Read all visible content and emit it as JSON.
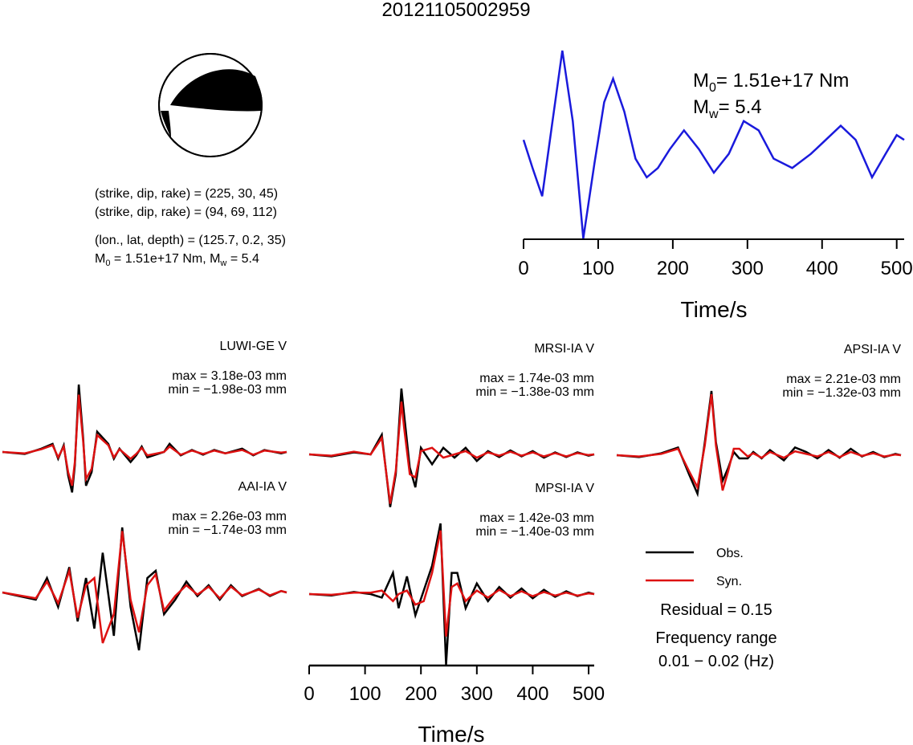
{
  "event_id": "20121105002959",
  "mechanism": {
    "lines": [
      "(strike, dip, rake) = (225, 30, 45)",
      "(strike, dip, rake) = (94, 69, 112)",
      "(lon., lat, depth) = (125.7, 0.2, 35)"
    ],
    "m0_text": "1.51e+17 Nm",
    "mw_text": "5.4",
    "m0_symbol": "M",
    "m0_sub": "0",
    "mw_sub": "w"
  },
  "colors": {
    "observed": "#000000",
    "synthetic": "#dd1111",
    "stf": "#1a1adc"
  },
  "stf_labels": {
    "m0_value": "= 1.51e+17 Nm",
    "mw_value": "= 5.4"
  },
  "legend": {
    "obs": "Obs.",
    "syn": "Syn.",
    "residual": "Residual = 0.15",
    "freq_label": "Frequency range",
    "freq_value": "0.01 − 0.02 (Hz)"
  },
  "chart_data": [
    {
      "type": "line",
      "name": "source time function",
      "xlabel": "Time/s",
      "xlim": [
        0,
        510
      ],
      "x_ticks": [
        0,
        100,
        200,
        300,
        400,
        500
      ],
      "series": [
        {
          "color": "#1a1adc",
          "x": [
            0,
            12,
            25,
            38,
            52,
            66,
            80,
            95,
            108,
            120,
            135,
            150,
            165,
            180,
            196,
            215,
            235,
            255,
            275,
            295,
            315,
            335,
            360,
            385,
            405,
            425,
            445,
            467,
            485,
            500,
            510
          ],
          "y": [
            0.05,
            -0.25,
            -0.55,
            0.2,
            1.0,
            0.25,
            -1.0,
            -0.2,
            0.45,
            0.7,
            0.35,
            -0.15,
            -0.35,
            -0.25,
            -0.05,
            0.15,
            -0.05,
            -0.3,
            -0.1,
            0.25,
            0.15,
            -0.15,
            -0.25,
            -0.1,
            0.05,
            0.2,
            0.05,
            -0.35,
            -0.1,
            0.1,
            0.05
          ]
        }
      ]
    },
    {
      "type": "line",
      "station": "LUWI-GE V",
      "max_text": "max = 3.18e-03 mm",
      "min_text": "min = −1.98e-03 mm",
      "xlim": [
        0,
        510
      ],
      "series": [
        {
          "name": "Obs.",
          "x": [
            0,
            40,
            70,
            90,
            100,
            110,
            118,
            125,
            130,
            137,
            145,
            150,
            160,
            170,
            190,
            200,
            210,
            230,
            240,
            250,
            260,
            290,
            300,
            320,
            340,
            360,
            380,
            400,
            430,
            450,
            470,
            500,
            510
          ],
          "y": [
            0,
            -0.03,
            0.05,
            0.12,
            -0.1,
            0.1,
            -0.35,
            -0.6,
            -0.2,
            1.0,
            0.2,
            -0.5,
            -0.3,
            0.3,
            0.12,
            -0.1,
            0.05,
            -0.15,
            -0.05,
            0.08,
            -0.08,
            0.0,
            0.12,
            -0.05,
            0.03,
            -0.04,
            0.03,
            -0.02,
            0.05,
            -0.05,
            0.03,
            -0.02,
            0.0
          ]
        },
        {
          "name": "Syn.",
          "x": [
            0,
            40,
            70,
            90,
            100,
            110,
            118,
            125,
            130,
            137,
            145,
            150,
            160,
            170,
            190,
            200,
            210,
            230,
            240,
            250,
            260,
            290,
            300,
            320,
            340,
            360,
            380,
            400,
            430,
            450,
            470,
            500,
            510
          ],
          "y": [
            0,
            -0.02,
            0.04,
            0.1,
            -0.08,
            0.08,
            -0.3,
            -0.5,
            -0.15,
            0.85,
            0.15,
            -0.4,
            -0.25,
            0.25,
            0.1,
            -0.08,
            0.04,
            -0.1,
            -0.03,
            0.06,
            -0.05,
            0.0,
            0.08,
            -0.04,
            0.02,
            -0.03,
            0.02,
            -0.02,
            0.03,
            -0.04,
            0.02,
            -0.01,
            0.0
          ]
        }
      ]
    },
    {
      "type": "line",
      "station": "MRSI-IA V",
      "max_text": "max = 1.74e-03 mm",
      "min_text": "min = −1.38e-03 mm",
      "xlim": [
        0,
        510
      ],
      "series": [
        {
          "name": "Obs.",
          "x": [
            0,
            40,
            80,
            110,
            130,
            145,
            155,
            165,
            170,
            180,
            190,
            200,
            220,
            240,
            260,
            280,
            300,
            320,
            340,
            360,
            380,
            400,
            420,
            440,
            460,
            480,
            500,
            510
          ],
          "y": [
            0,
            -0.03,
            0.03,
            0.0,
            0.3,
            -0.8,
            -0.3,
            1.0,
            0.6,
            -0.2,
            -0.5,
            0.1,
            -0.15,
            0.1,
            -0.05,
            0.1,
            -0.1,
            0.05,
            -0.04,
            0.06,
            -0.03,
            0.05,
            -0.05,
            0.03,
            -0.04,
            0.03,
            -0.02,
            0.0
          ]
        },
        {
          "name": "Syn.",
          "x": [
            0,
            40,
            80,
            110,
            130,
            145,
            155,
            165,
            170,
            180,
            190,
            200,
            220,
            240,
            260,
            280,
            300,
            320,
            340,
            360,
            380,
            400,
            420,
            440,
            460,
            480,
            500,
            510
          ],
          "y": [
            0,
            -0.02,
            0.04,
            0.0,
            0.25,
            -0.75,
            -0.25,
            0.8,
            0.4,
            -0.3,
            -0.35,
            0.05,
            0.1,
            -0.05,
            0.0,
            0.05,
            -0.05,
            0.03,
            -0.02,
            0.04,
            -0.02,
            0.03,
            -0.03,
            0.02,
            -0.03,
            0.02,
            -0.01,
            0.0
          ]
        }
      ]
    },
    {
      "type": "line",
      "station": "APSI-IA V",
      "max_text": "max = 2.21e-03 mm",
      "min_text": "min = −1.32e-03 mm",
      "xlim": [
        0,
        510
      ],
      "series": [
        {
          "name": "Obs.",
          "x": [
            0,
            40,
            80,
            110,
            130,
            145,
            158,
            170,
            178,
            190,
            200,
            210,
            220,
            235,
            245,
            260,
            275,
            300,
            320,
            340,
            360,
            380,
            400,
            420,
            440,
            460,
            480,
            500,
            510
          ],
          "y": [
            0,
            -0.03,
            0.03,
            0.12,
            -0.3,
            -0.6,
            0.2,
            1.0,
            0.2,
            -0.4,
            -0.2,
            0.05,
            -0.05,
            -0.05,
            0.05,
            -0.05,
            0.08,
            -0.08,
            0.12,
            0.05,
            -0.05,
            0.08,
            -0.04,
            0.1,
            -0.02,
            0.05,
            -0.03,
            0.02,
            0.0
          ]
        },
        {
          "name": "Syn.",
          "x": [
            0,
            40,
            80,
            110,
            130,
            145,
            158,
            170,
            178,
            190,
            200,
            210,
            220,
            235,
            245,
            260,
            275,
            300,
            320,
            340,
            360,
            380,
            400,
            420,
            440,
            460,
            480,
            500,
            510
          ],
          "y": [
            0,
            -0.02,
            0.02,
            0.1,
            -0.25,
            -0.5,
            0.15,
            0.95,
            0.15,
            -0.55,
            -0.25,
            0.1,
            0.1,
            -0.02,
            0.03,
            -0.04,
            0.05,
            -0.04,
            0.06,
            0.02,
            -0.02,
            0.05,
            -0.03,
            0.05,
            -0.01,
            0.03,
            -0.02,
            0.01,
            0.0
          ]
        }
      ]
    },
    {
      "type": "line",
      "station": "AAI-IA V",
      "max_text": "max = 2.26e-03 mm",
      "min_text": "min = −1.74e-03 mm",
      "xlim": [
        0,
        510
      ],
      "series": [
        {
          "name": "Obs.",
          "x": [
            0,
            30,
            60,
            80,
            100,
            120,
            135,
            150,
            165,
            180,
            200,
            215,
            230,
            245,
            260,
            275,
            290,
            310,
            330,
            350,
            370,
            390,
            410,
            430,
            460,
            480,
            500,
            510
          ],
          "y": [
            0,
            -0.05,
            -0.1,
            0.2,
            -0.2,
            0.35,
            -0.4,
            0.2,
            -0.5,
            0.55,
            -0.6,
            0.9,
            -0.2,
            -0.8,
            0.2,
            0.3,
            -0.3,
            -0.1,
            0.15,
            -0.05,
            0.1,
            -0.1,
            0.1,
            -0.05,
            0.05,
            -0.05,
            0.02,
            0.0
          ]
        },
        {
          "name": "Syn.",
          "x": [
            0,
            30,
            60,
            80,
            100,
            120,
            135,
            150,
            165,
            180,
            200,
            215,
            230,
            245,
            260,
            275,
            290,
            310,
            330,
            350,
            370,
            390,
            410,
            430,
            460,
            480,
            500,
            510
          ],
          "y": [
            0,
            -0.04,
            -0.08,
            0.15,
            -0.15,
            0.3,
            -0.35,
            0.1,
            0.2,
            -0.7,
            -0.3,
            0.85,
            -0.1,
            -0.55,
            0.1,
            0.25,
            -0.25,
            -0.05,
            0.1,
            -0.03,
            0.08,
            -0.08,
            0.08,
            -0.04,
            0.04,
            -0.04,
            0.02,
            0.0
          ]
        }
      ]
    },
    {
      "type": "line",
      "station": "MPSI-IA V",
      "max_text": "max = 1.42e-03 mm",
      "min_text": "min = −1.40e-03 mm",
      "xlim": [
        0,
        510
      ],
      "xlabel": "Time/s",
      "x_ticks": [
        0,
        100,
        200,
        300,
        400,
        500
      ],
      "series": [
        {
          "name": "Obs.",
          "x": [
            0,
            40,
            80,
            110,
            130,
            150,
            160,
            175,
            190,
            205,
            220,
            235,
            245,
            255,
            265,
            280,
            300,
            320,
            340,
            360,
            380,
            400,
            420,
            440,
            460,
            480,
            500,
            510
          ],
          "y": [
            0,
            -0.02,
            0.03,
            0.0,
            -0.05,
            0.3,
            -0.2,
            0.25,
            -0.3,
            0.05,
            0.4,
            1.0,
            -1.0,
            0.3,
            0.3,
            -0.2,
            0.15,
            -0.1,
            0.1,
            -0.05,
            0.08,
            -0.06,
            0.06,
            -0.04,
            0.04,
            -0.03,
            0.02,
            0.0
          ]
        },
        {
          "name": "Syn.",
          "x": [
            0,
            40,
            80,
            110,
            130,
            150,
            160,
            175,
            190,
            205,
            220,
            235,
            245,
            255,
            265,
            280,
            300,
            320,
            340,
            360,
            380,
            400,
            420,
            440,
            460,
            480,
            500,
            510
          ],
          "y": [
            0,
            -0.01,
            0.02,
            0.02,
            0.05,
            -0.1,
            0.0,
            0.05,
            -0.15,
            -0.1,
            0.3,
            0.9,
            -0.6,
            0.1,
            0.15,
            -0.1,
            0.05,
            -0.05,
            0.06,
            -0.03,
            0.04,
            -0.03,
            0.03,
            -0.02,
            0.02,
            -0.02,
            0.01,
            0.0
          ]
        }
      ]
    }
  ]
}
